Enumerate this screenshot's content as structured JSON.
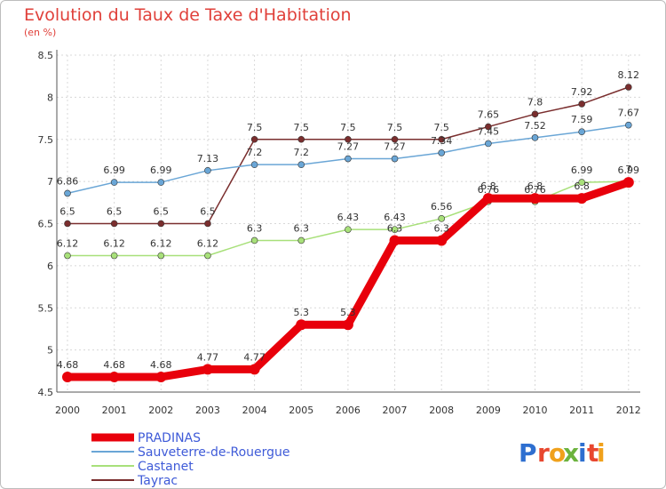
{
  "title": "Evolution du Taux de Taxe d'Habitation",
  "subtitle": "(en %)",
  "logo": {
    "letters": [
      "P",
      "r",
      "o",
      "x",
      "i",
      "t",
      "i"
    ],
    "colors": [
      "#2e6fd0",
      "#e8472f",
      "#f0a11c",
      "#6cb33e",
      "#2e6fd0",
      "#e8472f",
      "#f0a11c"
    ]
  },
  "chart_data": {
    "type": "line",
    "x": [
      "2000",
      "2001",
      "2002",
      "2003",
      "2004",
      "2005",
      "2006",
      "2007",
      "2008",
      "2009",
      "2010",
      "2011",
      "2012"
    ],
    "ylim": [
      4.5,
      8.5
    ],
    "yticks": [
      "4.5",
      "5",
      "5.5",
      "6",
      "6.5",
      "7",
      "7.5",
      "8",
      "8.5"
    ],
    "grid": true,
    "legend_position": "bottom-left",
    "series": [
      {
        "name": "PRADINAS",
        "color": "#e8000b",
        "values": [
          4.68,
          4.68,
          4.68,
          4.77,
          4.77,
          5.3,
          5.3,
          6.3,
          6.3,
          6.8,
          6.8,
          6.8,
          6.99
        ],
        "labels": [
          "4.68",
          "4.68",
          "4.68",
          "4.77",
          "4.77",
          "5.3",
          "5.3",
          "6.3",
          "6.3",
          "6.8",
          "6.8",
          "6.8",
          "6.99"
        ]
      },
      {
        "name": "Sauveterre-de-Rouergue",
        "color": "#6aa6d6",
        "values": [
          6.86,
          6.99,
          6.99,
          7.13,
          7.2,
          7.2,
          7.27,
          7.27,
          7.34,
          7.45,
          7.52,
          7.59,
          7.67
        ],
        "labels": [
          "6.86",
          "6.99",
          "6.99",
          "7.13",
          "7.2",
          "7.2",
          "7.27",
          "7.27",
          "7.34",
          "7.45",
          "7.52",
          "7.59",
          "7.67"
        ]
      },
      {
        "name": "Castanet",
        "color": "#a8e07a",
        "values": [
          6.12,
          6.12,
          6.12,
          6.12,
          6.3,
          6.3,
          6.43,
          6.43,
          6.56,
          6.76,
          6.76,
          6.99,
          7.0
        ],
        "labels": [
          "6.12",
          "6.12",
          "6.12",
          "6.12",
          "6.3",
          "6.3",
          "6.43",
          "6.43",
          "6.56",
          "6.76",
          "6.76",
          "6.99",
          "7"
        ]
      },
      {
        "name": "Tayrac",
        "color": "#7a2e2e",
        "values": [
          6.5,
          6.5,
          6.5,
          6.5,
          7.5,
          7.5,
          7.5,
          7.5,
          7.5,
          7.65,
          7.8,
          7.92,
          8.12
        ],
        "labels": [
          "6.5",
          "6.5",
          "6.5",
          "6.5",
          "7.5",
          "7.5",
          "7.5",
          "7.5",
          "7.5",
          "7.65",
          "7.8",
          "7.92",
          "8.12"
        ]
      }
    ]
  }
}
